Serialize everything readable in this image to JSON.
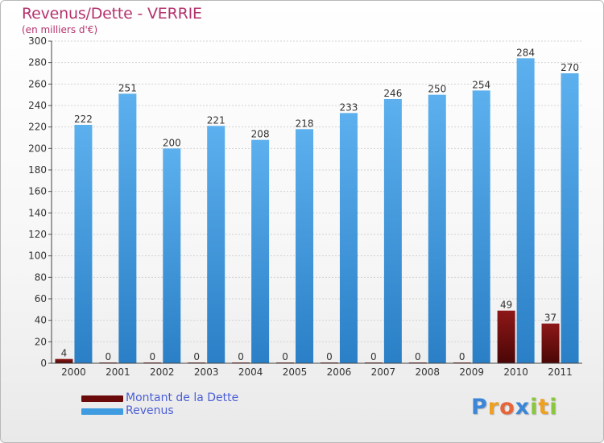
{
  "chart_data": {
    "type": "bar",
    "title": "Revenus/Dette - VERRIE",
    "subtitle": "(en milliers d'€)",
    "categories": [
      "2000",
      "2001",
      "2002",
      "2003",
      "2004",
      "2005",
      "2006",
      "2007",
      "2008",
      "2009",
      "2010",
      "2011"
    ],
    "series": [
      {
        "name": "Montant de la Dette",
        "color": "#6b0a0a",
        "values": [
          4,
          0,
          0,
          0,
          0,
          0,
          0,
          0,
          0,
          0,
          49,
          37
        ]
      },
      {
        "name": "Revenus",
        "color": "#3f9ce0",
        "values": [
          222,
          251,
          200,
          221,
          208,
          218,
          233,
          246,
          250,
          254,
          284,
          270
        ]
      }
    ],
    "ylim": [
      0,
      300
    ],
    "ytick_step": 20,
    "yticks": [
      "0",
      "20",
      "40",
      "60",
      "80",
      "100",
      "120",
      "140",
      "160",
      "180",
      "200",
      "220",
      "240",
      "260",
      "280",
      "300"
    ],
    "grid": true,
    "legend_position": "bottom-left"
  },
  "logo": {
    "letters": [
      {
        "ch": "P",
        "color": "#3a86d8"
      },
      {
        "ch": "r",
        "color": "#f0a020"
      },
      {
        "ch": "o",
        "color": "#e8643a"
      },
      {
        "ch": "x",
        "color": "#3a86d8"
      },
      {
        "ch": "i",
        "color": "#8cc640"
      },
      {
        "ch": "t",
        "color": "#f0a020"
      },
      {
        "ch": "i",
        "color": "#8cc640"
      }
    ]
  }
}
